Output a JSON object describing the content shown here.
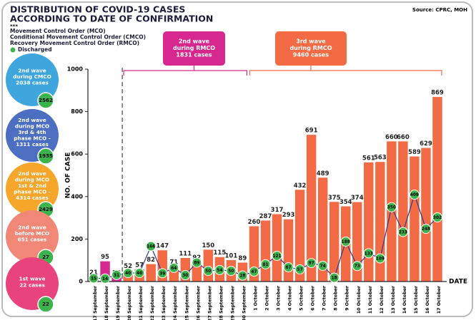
{
  "header": {
    "title": [
      "DISTRIBUTION OF COVID-19 CASES",
      "ACCORDING TO DATE OF CONFIRMATION"
    ],
    "marker": "***",
    "legend": [
      "Movement Control Order (MCO)",
      "Conditional Movement Control Order (CMCO)",
      "Recovery Movement Control Order (RMCO)"
    ],
    "source": "Source: CPRC, MOH"
  },
  "side_panel": [
    {
      "lines": [
        "2nd wave",
        "during CMCO",
        "2038 cases"
      ],
      "discharged": 2562,
      "color": "#3ea6dd"
    },
    {
      "lines": [
        "2nd wave",
        "during MCO",
        "3rd & 4th",
        "phase MCO -",
        "1311 cases"
      ],
      "discharged": 1935,
      "color": "#4d6fc1"
    },
    {
      "lines": [
        "2nd wave",
        "during MCO",
        "1st & 2nd",
        "phase MCO -",
        "4314 cases"
      ],
      "discharged": 2429,
      "color": "#f6a72b"
    },
    {
      "lines": [
        "2nd wave",
        "before MCO",
        "651 cases"
      ],
      "discharged": 27,
      "color": "#f08777"
    },
    {
      "lines": [
        "1st wave",
        "22 cases"
      ],
      "discharged": 22,
      "color": "#e8437c"
    }
  ],
  "chart_data": {
    "type": "bar",
    "y_label": "NO. OF CASE",
    "x_label": "DATE",
    "categories": [
      "17 September",
      "18 September",
      "19 September",
      "20 September",
      "21 September",
      "22 September",
      "23 September",
      "24 September",
      "25 September",
      "26 September",
      "27 September",
      "28 September",
      "29 September",
      "30 September",
      "1 October",
      "2 October",
      "3 October",
      "4 October",
      "5 October",
      "6 October",
      "7 October",
      "8 October",
      "9 October",
      "10 October",
      "11 October",
      "12 October",
      "13 October",
      "14 October",
      "15 October",
      "16 October",
      "17 October"
    ],
    "values": [
      21,
      95,
      20,
      52,
      57,
      82,
      147,
      71,
      111,
      92,
      150,
      115,
      101,
      89,
      260,
      287,
      317,
      293,
      432,
      691,
      489,
      375,
      354,
      374,
      561,
      563,
      660,
      660,
      589,
      629,
      869
    ],
    "colors": [
      "#d6288f",
      "#d6288f",
      "#d6288f",
      "#f26b45",
      "#f26b45",
      "#f26b45",
      "#f26b45",
      "#f26b45",
      "#f26b45",
      "#f26b45",
      "#f26b45",
      "#f26b45",
      "#f26b45",
      "#f26b45",
      "#f26b45",
      "#f26b45",
      "#f26b45",
      "#f26b45",
      "#f26b45",
      "#f26b45",
      "#f26b45",
      "#f26b45",
      "#f26b45",
      "#f26b45",
      "#f26b45",
      "#f26b45",
      "#f26b45",
      "#f26b45",
      "#f26b45",
      "#f26b45",
      "#f26b45"
    ],
    "discharged": {
      "name": "Discharged",
      "color": "#2f3b8f",
      "marker_color": "#3cb44b",
      "values": [
        15,
        14,
        31,
        40,
        40,
        166,
        39,
        64,
        30,
        89,
        50,
        54,
        50,
        28,
        47,
        81,
        121,
        67,
        57,
        87,
        74,
        18,
        188,
        73,
        133,
        109,
        350,
        233,
        409,
        248,
        302
      ]
    },
    "ylim": [
      0,
      1000
    ],
    "yticks": [
      0,
      200,
      400,
      600,
      800,
      1000
    ],
    "annotations": [
      {
        "lines": [
          "2nd wave",
          "during RMCO",
          "1831 cases"
        ],
        "color": "#d6288f"
      },
      {
        "lines": [
          "3rd wave",
          "during RMCO",
          "9460 cases"
        ],
        "color": "#f26b45"
      }
    ]
  }
}
